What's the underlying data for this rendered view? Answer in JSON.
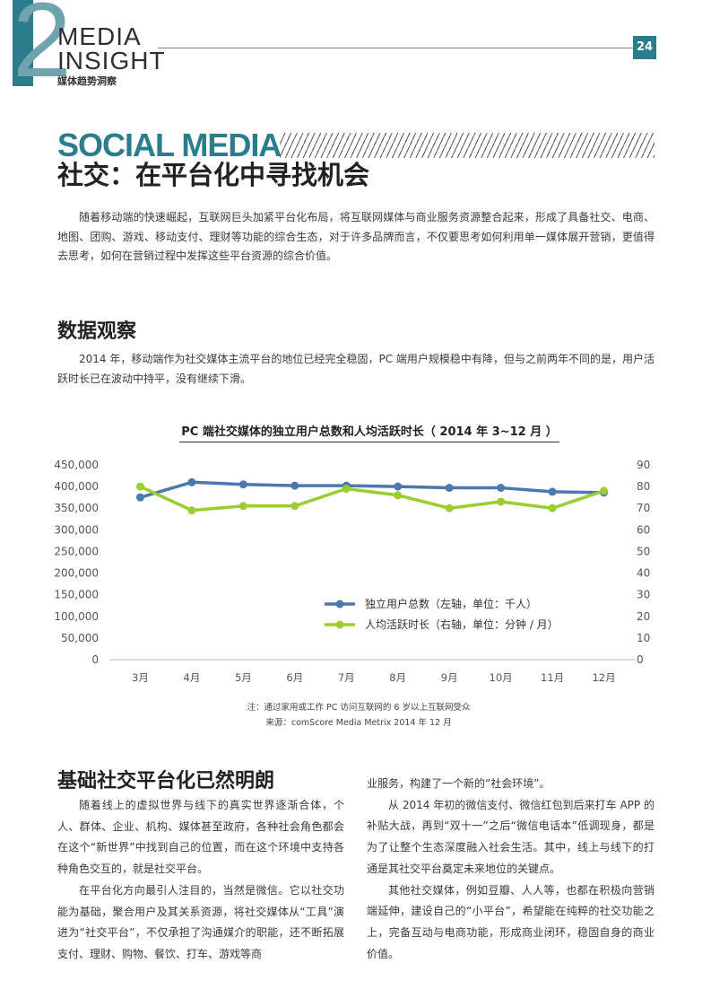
{
  "header": {
    "chapter_number": "2",
    "title_line1": "MEDIA",
    "title_line2": "INSIGHT",
    "subtitle_cn": "媒体趋势洞察",
    "page_number": "24"
  },
  "section": {
    "title_en": "SOCIAL MEDIA",
    "title_cn": "社交：在平台化中寻找机会",
    "intro": "随着移动端的快速崛起，互联网巨头加紧平台化布局，将互联网媒体与商业服务资源整合起来，形成了具备社交、电商、地图、团购、游戏、移动支付、理财等功能的综合生态，对于许多品牌而言，不仅要思考如何利用单一媒体展开营销，更值得去思考，如何在营销过程中发挥这些平台资源的综合价值。"
  },
  "data_observation": {
    "heading": "数据观察",
    "text": "2014 年，移动端作为社交媒体主流平台的地位已经完全稳固，PC 端用户规模稳中有降，但与之前两年不同的是，用户活跃时长已在波动中持平，没有继续下滑。"
  },
  "chart_data": {
    "type": "line",
    "title": "PC 端社交媒体的独立用户总数和人均活跃时长（ 2014 年 3~12 月 ）",
    "categories": [
      "3月",
      "4月",
      "5月",
      "6月",
      "7月",
      "8月",
      "9月",
      "10月",
      "11月",
      "12月"
    ],
    "x_positions": [
      3,
      4,
      5,
      6,
      7,
      8,
      9,
      10,
      11,
      12
    ],
    "series": [
      {
        "name": "独立用户总数（左轴，单位：千人）",
        "axis": "left",
        "color": "#4a78b0",
        "values": [
          375000,
          410000,
          405000,
          402000,
          402000,
          400000,
          397000,
          397000,
          388000,
          386000
        ]
      },
      {
        "name": "人均活跃时长（右轴，单位：分钟 / 月）",
        "axis": "right",
        "color": "#9acd32",
        "values": [
          80,
          69,
          71,
          71,
          79,
          76,
          70,
          73,
          70,
          78
        ]
      }
    ],
    "y_left": {
      "min": 0,
      "max": 450000,
      "ticks": [
        "0",
        "50,000",
        "100,000",
        "150,000",
        "200,000",
        "250,000",
        "300,000",
        "350,000",
        "400,000",
        "450,000"
      ]
    },
    "y_right": {
      "min": 0,
      "max": 90,
      "ticks": [
        "0",
        "10",
        "20",
        "30",
        "40",
        "50",
        "60",
        "70",
        "80",
        "90"
      ]
    },
    "note": "注：通过家用或工作 PC 访问互联网的 6 岁以上互联网受众",
    "source": "来源：comScore Media Metrix 2014 年 12 月"
  },
  "platform": {
    "heading": "基础社交平台化已然明朗",
    "left_p1": "随着线上的虚拟世界与线下的真实世界逐渐合体，个人、群体、企业、机构、媒体甚至政府，各种社会角色都会在这个“新世界”中找到自己的位置，而在这个环境中支持各种角色交互的，就是社交平台。",
    "left_p2": "在平台化方向最引人注目的，当然是微信。它以社交功能为基础，聚合用户及其关系资源，将社交媒体从“工具”演进为“社交平台”，不仅承担了沟通媒介的职能，还不断拓展支付、理财、购物、餐饮、打车、游戏等商",
    "right_p0": "业服务，构建了一个新的“社会环境”。",
    "right_p1": "从 2014 年初的微信支付、微信红包到后来打车 APP 的补贴大战，再到“双十一”之后“微信电话本”低调现身，都是为了让整个生态深度融入社会生活。其中，线上与线下的打通是其社交平台奠定未来地位的关键点。",
    "right_p2": "其他社交媒体，例如豆瓣、人人等，也都在积极向营销端延伸，建设自己的“小平台”，希望能在纯粹的社交功能之上，完备互动与电商功能，形成商业闭环，稳固自身的商业价值。"
  }
}
